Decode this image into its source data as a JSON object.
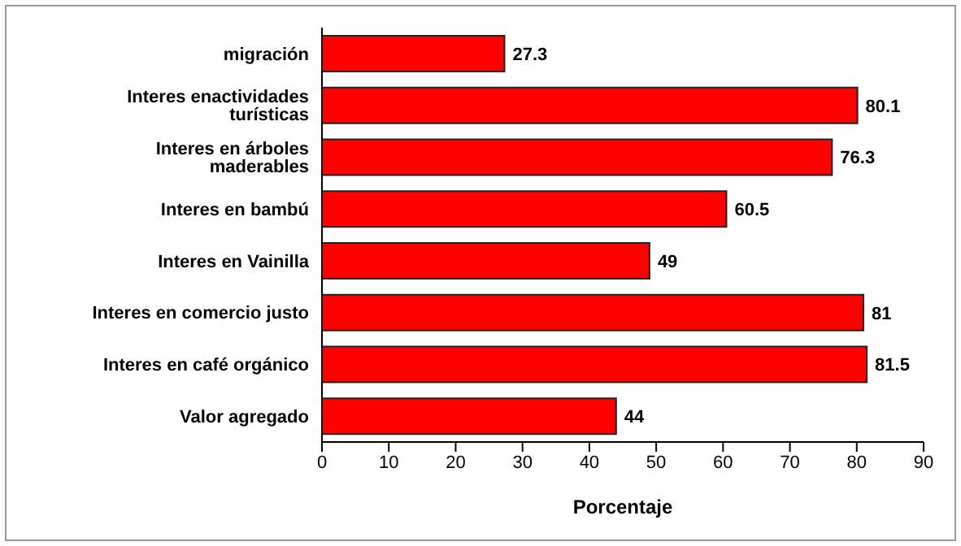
{
  "chart_data": {
    "type": "bar",
    "orientation": "horizontal",
    "xlabel": "Porcentaje",
    "categories": [
      "migración",
      "Interes enactividades turísticas",
      "Interes en árboles maderables",
      "Interes en bambú",
      "Interes en Vainilla",
      "Interes en comercio justo",
      "Interes en café orgánico",
      "Valor agregado"
    ],
    "values": [
      27.3,
      80.1,
      76.3,
      60.5,
      49,
      81,
      81.5,
      44
    ],
    "color": "#ff0000",
    "xlim": [
      0,
      90
    ],
    "xticks": [
      0,
      10,
      20,
      30,
      40,
      50,
      60,
      70,
      80,
      90
    ],
    "data_labels": true,
    "grid": false,
    "legend": false
  }
}
